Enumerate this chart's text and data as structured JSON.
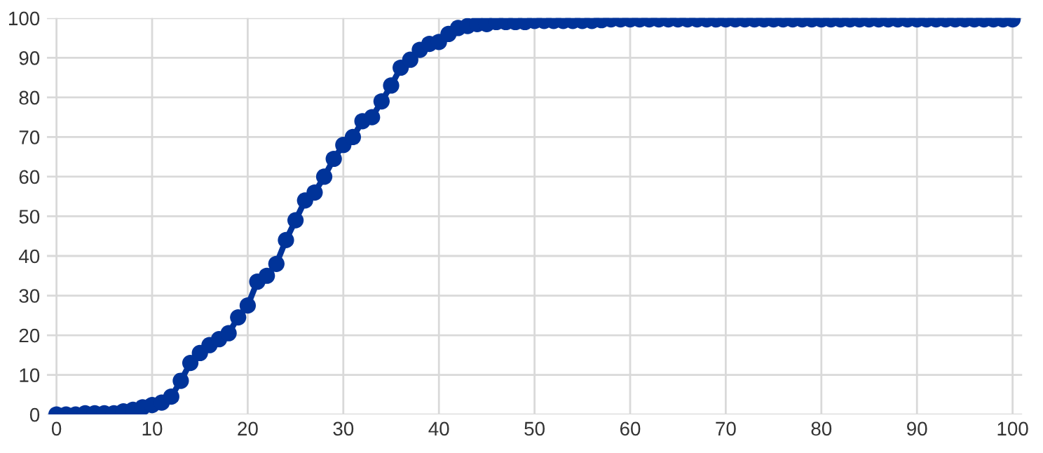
{
  "chart_data": {
    "type": "line",
    "x": [
      0,
      1,
      2,
      3,
      4,
      5,
      6,
      7,
      8,
      9,
      10,
      11,
      12,
      13,
      14,
      15,
      16,
      17,
      18,
      19,
      20,
      21,
      22,
      23,
      24,
      25,
      26,
      27,
      28,
      29,
      30,
      31,
      32,
      33,
      34,
      35,
      36,
      37,
      38,
      39,
      40,
      41,
      42,
      43,
      44,
      45,
      46,
      47,
      48,
      49,
      50,
      51,
      52,
      53,
      54,
      55,
      56,
      57,
      58,
      59,
      60,
      61,
      62,
      63,
      64,
      65,
      66,
      67,
      68,
      69,
      70,
      71,
      72,
      73,
      74,
      75,
      76,
      77,
      78,
      79,
      80,
      81,
      82,
      83,
      84,
      85,
      86,
      87,
      88,
      89,
      90,
      91,
      92,
      93,
      94,
      95,
      96,
      97,
      98,
      99,
      100
    ],
    "series": [
      {
        "color": "#003399",
        "values": [
          0,
          0,
          0,
          0.3,
          0.3,
          0.3,
          0.3,
          0.8,
          1.2,
          1.8,
          2.4,
          3,
          4.5,
          8.5,
          13,
          15.5,
          17.5,
          19,
          20.5,
          24.5,
          27.5,
          33.5,
          35,
          38,
          44,
          49,
          54,
          56,
          60,
          64.5,
          68,
          70,
          74,
          75,
          79,
          83,
          87.5,
          89.5,
          92,
          93.5,
          94,
          96,
          97.5,
          98,
          98.5,
          98.5,
          99,
          99,
          99,
          99,
          99.3,
          99.3,
          99.3,
          99.3,
          99.3,
          99.3,
          99.3,
          99.5,
          99.7,
          99.7,
          99.7,
          99.7,
          99.7,
          99.7,
          99.7,
          99.7,
          99.7,
          99.7,
          99.7,
          99.7,
          99.7,
          99.7,
          99.7,
          99.7,
          99.7,
          99.7,
          99.7,
          99.7,
          99.7,
          99.7,
          99.7,
          99.7,
          99.7,
          99.7,
          99.7,
          99.7,
          99.7,
          99.7,
          99.7,
          99.7,
          99.7,
          99.7,
          99.7,
          99.7,
          99.7,
          99.7,
          99.7,
          99.7,
          99.7,
          99.7,
          99.7
        ]
      }
    ],
    "xlim": [
      -1,
      101
    ],
    "ylim": [
      0,
      100
    ],
    "xticks": [
      0,
      10,
      20,
      30,
      40,
      50,
      60,
      70,
      80,
      90,
      100
    ],
    "yticks": [
      0,
      10,
      20,
      30,
      40,
      50,
      60,
      70,
      80,
      90,
      100
    ],
    "grid": true,
    "marker": "circle",
    "line_style": "solid"
  }
}
